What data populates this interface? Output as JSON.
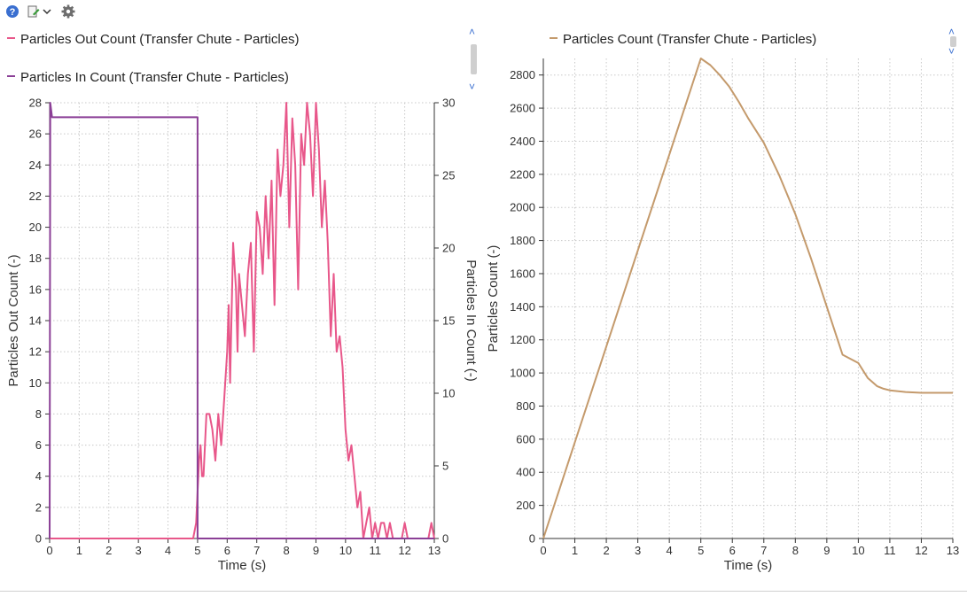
{
  "toolbar": {
    "help_icon": "help-icon",
    "edit_icon": "edit-dropdown-icon",
    "settings_icon": "gear-icon"
  },
  "colors": {
    "out_series": "#e8578a",
    "in_series": "#8b3f96",
    "count_series": "#c49a6c",
    "grid": "#c8c8c8",
    "accent": "#3a6fd0"
  },
  "left_legend": {
    "out_label": "Particles Out Count (Transfer Chute - Particles)",
    "in_label": "Particles In Count (Transfer Chute - Particles)"
  },
  "right_legend": {
    "count_label": "Particles Count (Transfer Chute - Particles)"
  },
  "chart_data": [
    {
      "type": "line",
      "xlabel": "Time (s)",
      "ylabel": "Particles Out Count (-)",
      "y2label": "Particles In Count (-)",
      "xlim": [
        0,
        13
      ],
      "ylim": [
        0,
        28
      ],
      "y2lim": [
        0,
        30
      ],
      "xticks": [
        0,
        1,
        2,
        3,
        4,
        5,
        6,
        7,
        8,
        9,
        10,
        11,
        12,
        13
      ],
      "yticks": [
        0,
        2,
        4,
        6,
        8,
        10,
        12,
        14,
        16,
        18,
        20,
        22,
        24,
        26,
        28
      ],
      "y2ticks": [
        0,
        5,
        10,
        15,
        20,
        25,
        30
      ],
      "grid": true,
      "legend_position": "top-left",
      "series": [
        {
          "name": "Particles Out Count (Transfer Chute - Particles)",
          "axis": "left",
          "x": [
            0,
            4.85,
            4.95,
            5.0,
            5.05,
            5.1,
            5.15,
            5.2,
            5.3,
            5.4,
            5.5,
            5.6,
            5.7,
            5.8,
            5.9,
            6.0,
            6.05,
            6.1,
            6.2,
            6.3,
            6.35,
            6.4,
            6.5,
            6.6,
            6.7,
            6.8,
            6.9,
            7.0,
            7.1,
            7.2,
            7.3,
            7.4,
            7.5,
            7.6,
            7.7,
            7.8,
            7.9,
            8.0,
            8.1,
            8.2,
            8.3,
            8.4,
            8.5,
            8.6,
            8.7,
            8.8,
            8.9,
            9.0,
            9.1,
            9.2,
            9.3,
            9.4,
            9.5,
            9.6,
            9.7,
            9.8,
            9.9,
            10.0,
            10.1,
            10.2,
            10.3,
            10.4,
            10.5,
            10.6,
            10.7,
            10.8,
            10.9,
            11.0,
            11.1,
            11.2,
            11.3,
            11.4,
            11.5,
            11.6,
            11.7,
            11.8,
            11.9,
            12.0,
            12.1,
            12.2,
            12.3,
            12.4,
            12.5,
            12.6,
            12.7,
            12.8,
            12.9,
            13.0
          ],
          "y": [
            0,
            0,
            1,
            3,
            5,
            6,
            4,
            4,
            8,
            8,
            7,
            5,
            8,
            6,
            9,
            12,
            15,
            10,
            19,
            16,
            12,
            17,
            15,
            13,
            17,
            19,
            12,
            21,
            20,
            17,
            22,
            18,
            23,
            15,
            25,
            22,
            24,
            28,
            20,
            27,
            24,
            16,
            26,
            24,
            28,
            26,
            22,
            28,
            25,
            20,
            23,
            19,
            13,
            17,
            12,
            13,
            11,
            7,
            5,
            6,
            4,
            2,
            3,
            0,
            1,
            2,
            0,
            1,
            0,
            1,
            1,
            0,
            1,
            0,
            0,
            0,
            0,
            1,
            0,
            0,
            0,
            0,
            0,
            0,
            0,
            0,
            1,
            0
          ]
        },
        {
          "name": "Particles In Count (Transfer Chute - Particles)",
          "axis": "right",
          "x": [
            0,
            0.02,
            0.08,
            0.1,
            5.0,
            5.0,
            13.0
          ],
          "y": [
            0,
            30,
            29,
            29,
            29,
            0,
            0
          ]
        }
      ]
    },
    {
      "type": "line",
      "xlabel": "Time (s)",
      "ylabel": "Particles Count (-)",
      "xlim": [
        0,
        13
      ],
      "ylim": [
        0,
        2900
      ],
      "xticks": [
        0,
        1,
        2,
        3,
        4,
        5,
        6,
        7,
        8,
        9,
        10,
        11,
        12,
        13
      ],
      "yticks": [
        0,
        200,
        400,
        600,
        800,
        1000,
        1200,
        1400,
        1600,
        1800,
        2000,
        2200,
        2400,
        2600,
        2800
      ],
      "grid": true,
      "legend_position": "top-left",
      "series": [
        {
          "name": "Particles Count (Transfer Chute - Particles)",
          "x": [
            0,
            1,
            2,
            3,
            4,
            5,
            5.3,
            5.6,
            5.9,
            6.2,
            6.5,
            7.0,
            7.5,
            8.0,
            8.5,
            9.0,
            9.5,
            10.0,
            10.3,
            10.6,
            10.8,
            11.0,
            11.5,
            12.0,
            12.5,
            13.0
          ],
          "y": [
            0,
            580,
            1160,
            1740,
            2320,
            2900,
            2860,
            2800,
            2730,
            2640,
            2540,
            2390,
            2190,
            1960,
            1690,
            1400,
            1110,
            1060,
            970,
            920,
            905,
            895,
            885,
            880,
            880,
            880
          ]
        }
      ]
    }
  ]
}
